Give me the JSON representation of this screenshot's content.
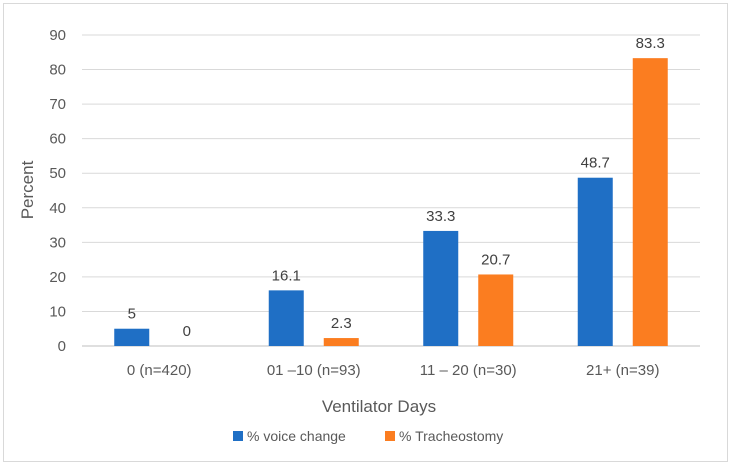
{
  "chart_data": {
    "type": "bar",
    "title": "",
    "xlabel": "Ventilator Days",
    "ylabel": "Percent",
    "ylim": [
      0,
      90
    ],
    "ytick_step": 10,
    "grid": true,
    "legend_position": "bottom",
    "categories": [
      "0 (n=420)",
      "01 –10 (n=93)",
      "11 – 20 (n=30)",
      "21+  (n=39)"
    ],
    "series": [
      {
        "name": "% voice change",
        "color": "#1f6fc5",
        "values": [
          5,
          16.1,
          33.3,
          48.7
        ],
        "labels": [
          "5",
          "16.1",
          "33.3",
          "48.7"
        ]
      },
      {
        "name": "% Tracheostomy",
        "color": "#fb7d20",
        "values": [
          0,
          2.3,
          20.7,
          83.3
        ],
        "labels": [
          "0",
          "2.3",
          "20.7",
          "83.3"
        ]
      }
    ]
  }
}
